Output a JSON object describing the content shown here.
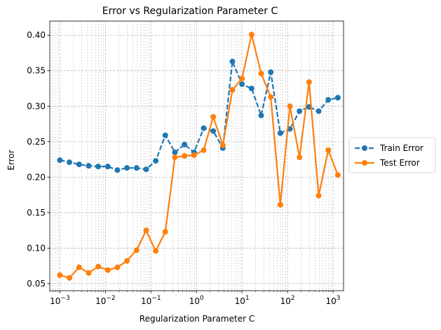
{
  "chart_data": {
    "type": "line",
    "title": "Error vs Regularization Parameter C",
    "xlabel": "Regularization Parameter C",
    "ylabel": "Error",
    "xscale": "log",
    "xlim": [
      0.0006,
      1700
    ],
    "ylim": [
      0.04,
      0.42
    ],
    "x_ticks": [
      {
        "value": 0.001,
        "base": "10",
        "exp": "−3"
      },
      {
        "value": 0.01,
        "base": "10",
        "exp": "−2"
      },
      {
        "value": 0.1,
        "base": "10",
        "exp": "−1"
      },
      {
        "value": 1,
        "base": "10",
        "exp": "0"
      },
      {
        "value": 10,
        "base": "10",
        "exp": "1"
      },
      {
        "value": 100,
        "base": "10",
        "exp": "2"
      },
      {
        "value": 1000,
        "base": "10",
        "exp": "3"
      }
    ],
    "y_ticks": [
      {
        "value": 0.05,
        "label": "0.05"
      },
      {
        "value": 0.1,
        "label": "0.10"
      },
      {
        "value": 0.15,
        "label": "0.15"
      },
      {
        "value": 0.2,
        "label": "0.20"
      },
      {
        "value": 0.25,
        "label": "0.25"
      },
      {
        "value": 0.3,
        "label": "0.30"
      },
      {
        "value": 0.35,
        "label": "0.35"
      },
      {
        "value": 0.4,
        "label": "0.40"
      }
    ],
    "grid": true,
    "legend_position": "outside-right",
    "x": [
      0.001,
      0.00162,
      0.00264,
      0.00428,
      0.00695,
      0.01129,
      0.01833,
      0.02976,
      0.04833,
      0.07848,
      0.12743,
      0.20691,
      0.33598,
      0.54556,
      0.88587,
      1.43845,
      2.33572,
      3.79269,
      6.15848,
      10.0,
      16.2378,
      26.3665,
      42.8133,
      69.5193,
      112.884,
      183.298,
      297.635,
      483.293,
      784.76,
      1274.27
    ],
    "series": [
      {
        "name": "Train Error",
        "color": "#1f77b4",
        "style": "dashed",
        "values": [
          0.224,
          0.221,
          0.218,
          0.216,
          0.215,
          0.215,
          0.21,
          0.213,
          0.213,
          0.211,
          0.223,
          0.259,
          0.235,
          0.246,
          0.235,
          0.269,
          0.265,
          0.241,
          0.363,
          0.331,
          0.325,
          0.287,
          0.348,
          0.262,
          0.268,
          0.293,
          0.299,
          0.293,
          0.309,
          0.312
        ]
      },
      {
        "name": "Test Error",
        "color": "#ff7f0e",
        "style": "solid",
        "values": [
          0.062,
          0.058,
          0.073,
          0.065,
          0.074,
          0.069,
          0.073,
          0.082,
          0.097,
          0.125,
          0.096,
          0.123,
          0.228,
          0.23,
          0.231,
          0.238,
          0.285,
          0.245,
          0.323,
          0.339,
          0.401,
          0.346,
          0.313,
          0.161,
          0.3,
          0.228,
          0.334,
          0.174,
          0.238,
          0.203
        ]
      }
    ]
  }
}
